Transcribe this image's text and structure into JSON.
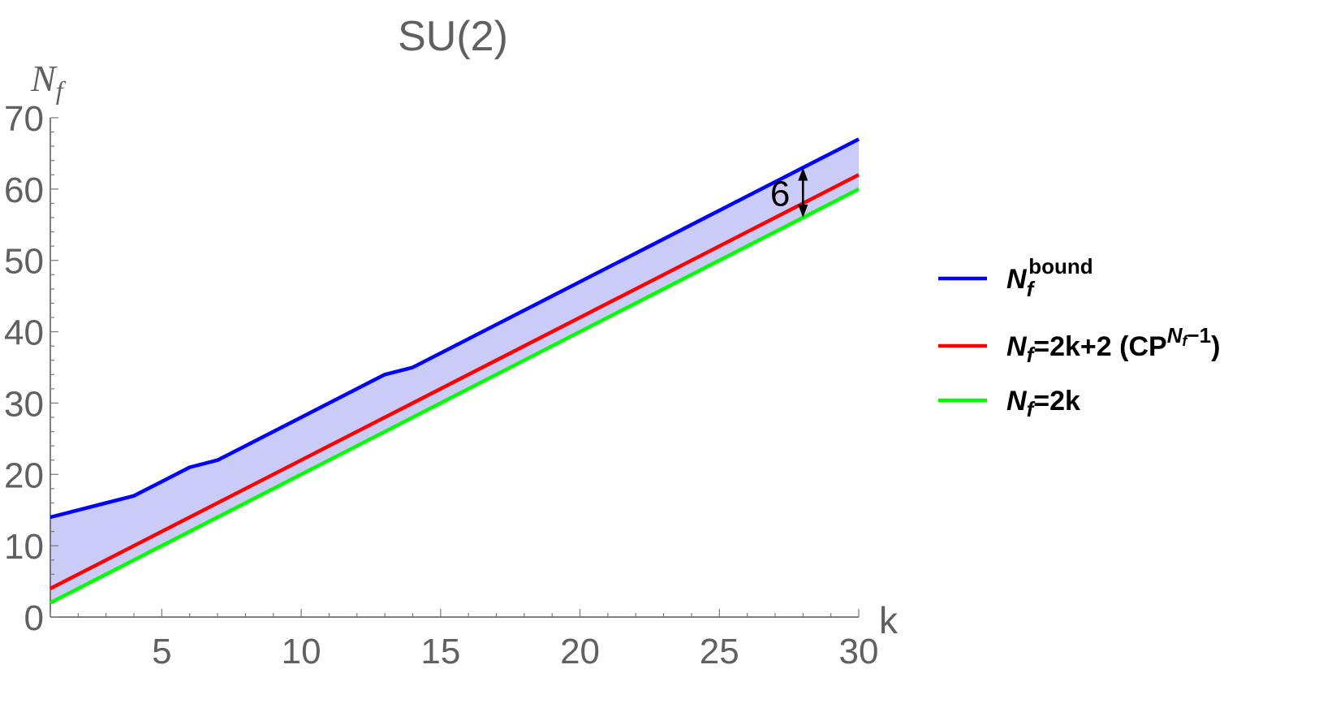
{
  "chart_data": {
    "type": "line",
    "title": "SU(2)",
    "xlabel": "k",
    "ylabel": "N",
    "ylabel_sub": "f",
    "xlim": [
      1,
      30
    ],
    "ylim": [
      0,
      70
    ],
    "xticks": [
      5,
      10,
      15,
      20,
      25,
      30
    ],
    "yticks": [
      0,
      10,
      20,
      30,
      40,
      50,
      60,
      70
    ],
    "grid": false,
    "legend_position": "right",
    "series": [
      {
        "name": "N_f^bound",
        "legend_parts": [
          "N",
          "f",
          "bound"
        ],
        "color": "#0000ff",
        "x": [
          1,
          4,
          5,
          6,
          7,
          13,
          14,
          30
        ],
        "y": [
          14,
          17,
          19,
          21,
          22,
          34,
          35,
          67
        ]
      },
      {
        "name": "N_f=2k+2 (CP^{N_f−1})",
        "legend_parts": [
          "N",
          "f",
          "=2k+2 (CP",
          "N",
          "f",
          "−1",
          ")"
        ],
        "color": "#ff0000",
        "x": [
          1,
          30
        ],
        "y": [
          4,
          62
        ]
      },
      {
        "name": "N_f=2k",
        "legend_parts": [
          "N",
          "f",
          "=2k"
        ],
        "color": "#00ff00",
        "x": [
          1,
          30
        ],
        "y": [
          2,
          60
        ]
      }
    ],
    "shaded_region": {
      "between": [
        "N_f^bound",
        "N_f=2k"
      ],
      "color": "#c8c8f8"
    },
    "annotations": [
      {
        "text": "6",
        "x": 28,
        "y_from": 56,
        "y_to": 63,
        "type": "double-arrow"
      }
    ]
  }
}
